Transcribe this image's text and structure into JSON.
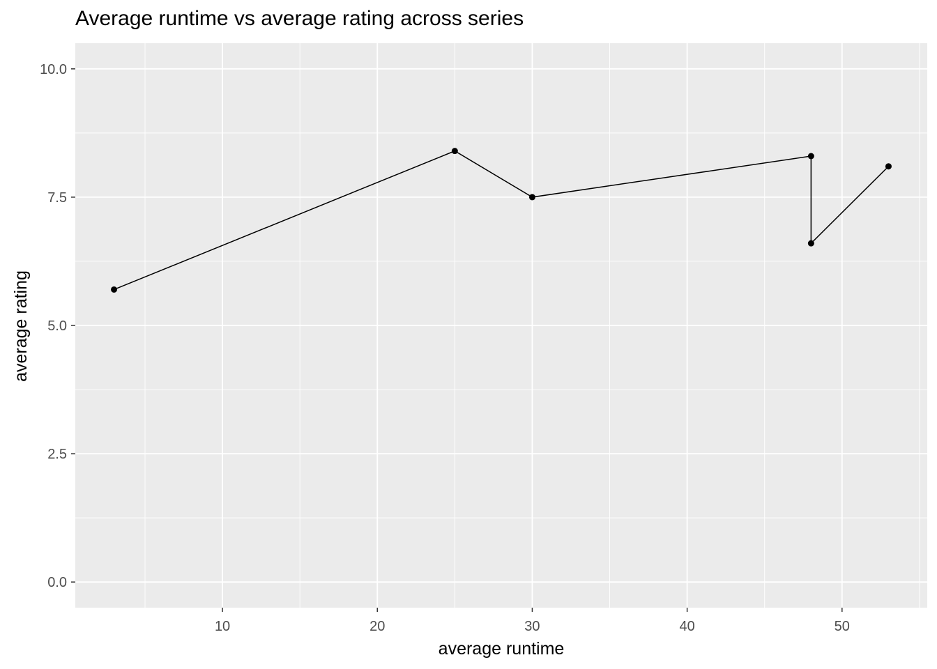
{
  "chart_data": {
    "type": "line",
    "title": "Average runtime vs average rating across series",
    "xlabel": "average runtime",
    "ylabel": "average rating",
    "xlim": [
      0.5,
      55.5
    ],
    "ylim": [
      -0.5,
      10.5
    ],
    "x_ticks": [
      10,
      20,
      30,
      40,
      50
    ],
    "x_minor": [
      5,
      15,
      25,
      35,
      45,
      55
    ],
    "y_ticks": [
      0.0,
      2.5,
      5.0,
      7.5,
      10.0
    ],
    "y_tick_labels": [
      "0.0",
      "2.5",
      "5.0",
      "7.5",
      "10.0"
    ],
    "grid": true,
    "legend": "none",
    "series": [
      {
        "x": [
          3,
          25,
          30,
          48,
          48,
          53
        ],
        "y": [
          5.7,
          8.4,
          7.5,
          8.3,
          6.6,
          8.1
        ],
        "color": "#000000",
        "markers": true
      }
    ],
    "panel_background": "#ebebeb",
    "grid_color": "#ffffff"
  }
}
